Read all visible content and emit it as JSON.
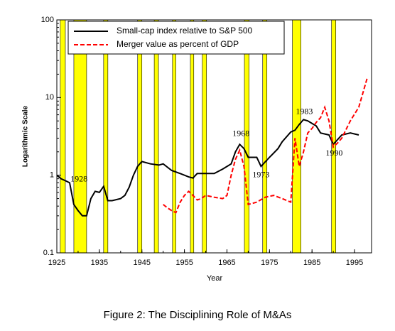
{
  "chart_data": {
    "type": "line",
    "caption": "Figure 2: The Disciplining Role of M&As",
    "x_label": "Year",
    "y_label": "Logarithmic Scale",
    "log_scale_y": true,
    "legend": "top-left",
    "xlim": [
      1925,
      1999
    ],
    "ylim": [
      0.1,
      100
    ],
    "xticks": [
      1925,
      1935,
      1945,
      1955,
      1965,
      1975,
      1985,
      1995
    ],
    "yticks": [
      0.1,
      1,
      10,
      100
    ],
    "band_color": "#ffff00",
    "bands": [
      [
        1925.8,
        1927.0
      ],
      [
        1929.0,
        1932.0
      ],
      [
        1936.0,
        1937.0
      ],
      [
        1944.0,
        1945.0
      ],
      [
        1947.9,
        1948.9
      ],
      [
        1952.2,
        1953.0
      ],
      [
        1956.4,
        1957.2
      ],
      [
        1959.2,
        1960.2
      ],
      [
        1969.1,
        1970.2
      ],
      [
        1973.4,
        1974.4
      ],
      [
        1980.4,
        1982.4
      ],
      [
        1989.6,
        1990.6
      ]
    ],
    "annotations": [
      "1928",
      "1968",
      "1973",
      "1983",
      "1990"
    ],
    "series": [
      {
        "name": "Small-cap index relative to S&P 500",
        "color": "#000000",
        "dash": false,
        "x": [
          1925,
          1926,
          1927,
          1928,
          1929,
          1930,
          1931,
          1932,
          1933,
          1934,
          1935,
          1936,
          1937,
          1938,
          1940,
          1941,
          1942,
          1943,
          1944,
          1945,
          1947,
          1949,
          1950,
          1952,
          1954,
          1956,
          1957,
          1958,
          1960,
          1962,
          1964,
          1966,
          1967,
          1968,
          1969,
          1970,
          1972,
          1973,
          1975,
          1977,
          1978,
          1980,
          1981,
          1982,
          1983,
          1984,
          1986,
          1987,
          1989,
          1990,
          1992,
          1994,
          1996
        ],
        "values": [
          1.0,
          0.9,
          0.85,
          0.8,
          0.42,
          0.35,
          0.3,
          0.3,
          0.5,
          0.62,
          0.6,
          0.72,
          0.47,
          0.47,
          0.5,
          0.55,
          0.7,
          1.0,
          1.3,
          1.5,
          1.4,
          1.35,
          1.4,
          1.15,
          1.05,
          0.95,
          0.92,
          1.05,
          1.05,
          1.05,
          1.2,
          1.4,
          2.0,
          2.5,
          2.2,
          1.7,
          1.7,
          1.3,
          1.7,
          2.2,
          2.7,
          3.6,
          3.8,
          4.5,
          5.2,
          5.0,
          4.3,
          3.5,
          3.3,
          2.5,
          3.3,
          3.5,
          3.3
        ]
      },
      {
        "name": "Merger value as percent of GDP",
        "color": "#ff0000",
        "dash": true,
        "x": [
          1950,
          1951,
          1952,
          1953,
          1954,
          1955,
          1956,
          1957,
          1958,
          1959,
          1960,
          1962,
          1964,
          1965,
          1966,
          1967,
          1968,
          1969,
          1970,
          1972,
          1974,
          1976,
          1978,
          1980,
          1981,
          1982,
          1983,
          1984,
          1985,
          1986,
          1987,
          1988,
          1989,
          1990,
          1991,
          1992,
          1994,
          1996,
          1998
        ],
        "values": [
          0.42,
          0.38,
          0.35,
          0.33,
          0.45,
          0.55,
          0.62,
          0.55,
          0.48,
          0.5,
          0.55,
          0.52,
          0.5,
          0.55,
          1.0,
          1.6,
          2.1,
          1.3,
          0.42,
          0.45,
          0.52,
          0.55,
          0.5,
          0.45,
          3.0,
          1.3,
          2.0,
          3.5,
          4.0,
          4.8,
          5.5,
          7.5,
          5.0,
          2.3,
          2.6,
          3.0,
          5.0,
          7.5,
          18
        ]
      }
    ]
  }
}
